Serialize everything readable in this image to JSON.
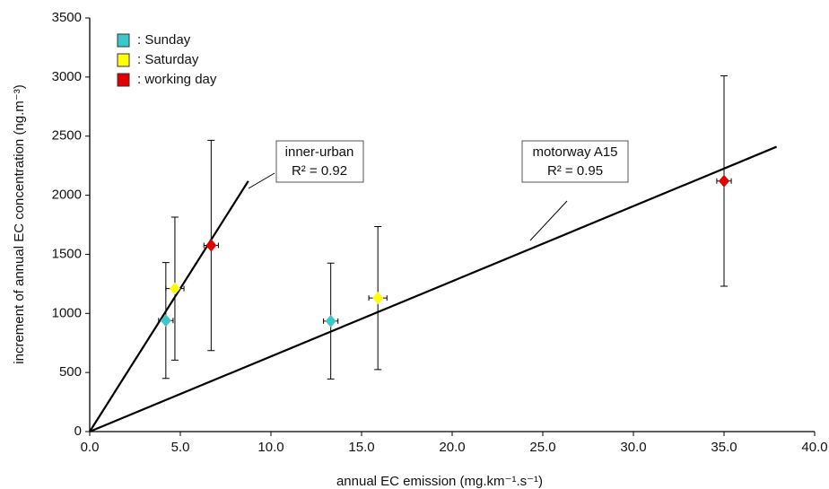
{
  "chart_data": {
    "type": "scatter",
    "x_label": "annual EC emission (mg.km⁻¹.s⁻¹)",
    "y_label": "increment of annual EC concentration (ng.m⁻³)",
    "xlim": [
      0,
      40
    ],
    "ylim": [
      0,
      3500
    ],
    "xticks": [
      {
        "value": 0,
        "label": "0.0"
      },
      {
        "value": 5,
        "label": "5.0"
      },
      {
        "value": 10,
        "label": "10.0"
      },
      {
        "value": 15,
        "label": "15.0"
      },
      {
        "value": 20,
        "label": "20.0"
      },
      {
        "value": 25,
        "label": "25.0"
      },
      {
        "value": 30,
        "label": "30.0"
      },
      {
        "value": 35,
        "label": "35.0"
      },
      {
        "value": 40,
        "label": "40.0"
      }
    ],
    "yticks": [
      0,
      500,
      1000,
      1500,
      2000,
      2500,
      3000,
      3500
    ],
    "grid": false,
    "legend": "top-left",
    "series": [
      {
        "name": ": Sunday",
        "color": "#3cc8c8",
        "x": [
          4.2,
          13.3
        ],
        "values": [
          940,
          935
        ],
        "yerr": [
          490,
          490
        ],
        "xerr": [
          0.4,
          0.4
        ]
      },
      {
        "name": ": Saturday",
        "color": "#ffff00",
        "x": [
          4.7,
          15.9
        ],
        "values": [
          1210,
          1130
        ],
        "yerr": [
          605,
          605
        ],
        "xerr": [
          0.5,
          0.5
        ]
      },
      {
        "name": ": working day",
        "color": "#e00000",
        "x": [
          6.7,
          35.0
        ],
        "values": [
          1575,
          2120
        ],
        "yerr": [
          890,
          890
        ],
        "xerr": [
          0.4,
          0.4
        ]
      }
    ],
    "lines": [
      {
        "name": "inner-urban",
        "r2": "R² = 0.92",
        "x": [
          0,
          8.75
        ],
        "y": [
          0,
          2120
        ]
      },
      {
        "name": "motorway A15",
        "r2": "R² = 0.95",
        "x": [
          0,
          37.9
        ],
        "y": [
          0,
          2410
        ]
      }
    ]
  }
}
